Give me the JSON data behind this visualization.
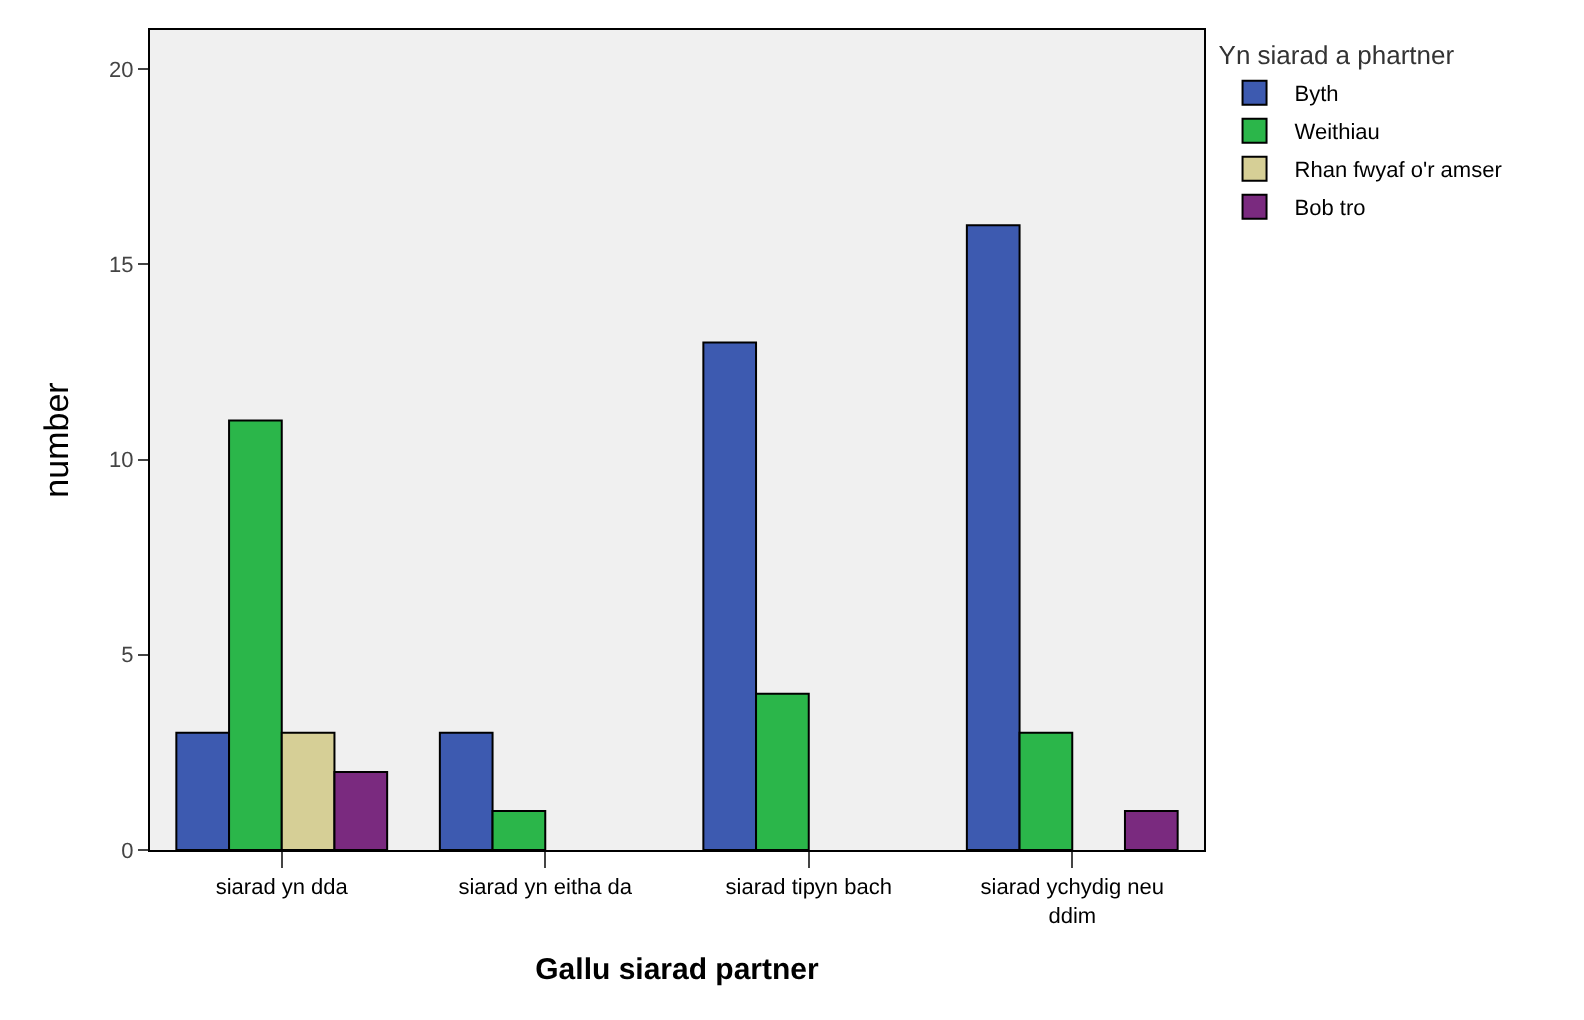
{
  "chart_data": {
    "type": "bar",
    "xlabel": "Gallu siarad partner",
    "ylabel": "number",
    "legend_title": "Yn siarad a phartner",
    "categories": [
      "siarad yn dda",
      "siarad yn eitha da",
      "siarad tipyn bach",
      "siarad ychydig neu ddim"
    ],
    "series": [
      {
        "name": "Byth",
        "color": "#3d5ab0",
        "values": [
          3,
          3,
          13,
          16
        ]
      },
      {
        "name": "Weithiau",
        "color": "#2bb64a",
        "values": [
          11,
          1,
          4,
          3
        ]
      },
      {
        "name": "Rhan fwyaf o'r amser",
        "color": "#d6cf96",
        "values": [
          3,
          null,
          null,
          null
        ]
      },
      {
        "name": "Bob tro",
        "color": "#7a2a7f",
        "values": [
          2,
          null,
          null,
          1
        ]
      }
    ],
    "ylim": [
      0,
      21
    ],
    "yticks": [
      0,
      5,
      10,
      15,
      20
    ],
    "grid": false,
    "legend": "top right"
  }
}
